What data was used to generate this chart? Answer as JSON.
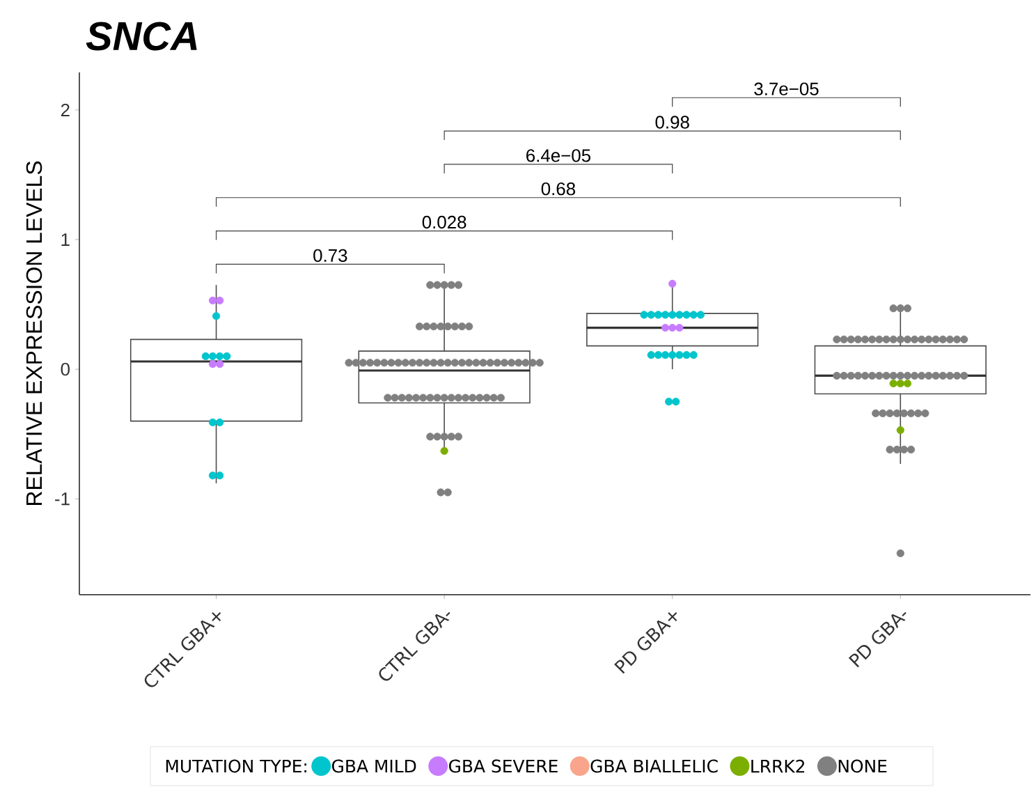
{
  "chart_data": {
    "type": "box",
    "title": "SNCA",
    "ylabel": "RELATIVE EXPRESSION LEVELS",
    "legend_title": "MUTATION TYPE:",
    "categories": [
      "CTRL GBA+",
      "CTRL GBA-",
      "PD GBA+",
      "PD GBA-"
    ],
    "ylim": [
      -1.74,
      2.29
    ],
    "yticks": [
      -1,
      0,
      1,
      2
    ],
    "grid": false,
    "legend": "bottom",
    "marker": "circle",
    "boxes": [
      {
        "low": -0.88,
        "q1": -0.4,
        "median": 0.06,
        "q3": 0.23,
        "high": 0.65
      },
      {
        "low": -0.63,
        "q1": -0.26,
        "median": -0.01,
        "q3": 0.14,
        "high": 0.65
      },
      {
        "low": 0.0,
        "q1": 0.18,
        "median": 0.32,
        "q3": 0.43,
        "high": 0.66
      },
      {
        "low": -0.73,
        "q1": -0.19,
        "median": -0.05,
        "q3": 0.18,
        "high": 0.5
      }
    ],
    "series": [
      {
        "name": "GBA MILD",
        "type": "scatter",
        "color": "#00c5cd",
        "x": [
          "CTRL GBA+",
          "CTRL GBA+",
          "CTRL GBA+",
          "CTRL GBA+",
          "CTRL GBA+",
          "CTRL GBA+",
          "CTRL GBA+",
          "CTRL GBA+",
          "CTRL GBA+",
          "PD GBA+",
          "PD GBA+",
          "PD GBA+",
          "PD GBA+",
          "PD GBA+",
          "PD GBA+",
          "PD GBA+",
          "PD GBA+",
          "PD GBA+",
          "PD GBA+",
          "PD GBA+",
          "PD GBA+",
          "PD GBA+",
          "PD GBA+",
          "PD GBA+",
          "PD GBA+",
          "PD GBA+",
          "PD GBA+"
        ],
        "values": [
          0.41,
          0.1,
          0.1,
          0.1,
          0.1,
          -0.41,
          -0.41,
          -0.82,
          -0.82,
          0.42,
          0.42,
          0.42,
          0.42,
          0.42,
          0.42,
          0.42,
          0.42,
          0.42,
          0.11,
          0.11,
          0.11,
          0.11,
          0.11,
          0.11,
          0.11,
          -0.25,
          -0.25
        ]
      },
      {
        "name": "GBA SEVERE",
        "type": "scatter",
        "color": "#c77cff",
        "x": [
          "CTRL GBA+",
          "CTRL GBA+",
          "CTRL GBA+",
          "CTRL GBA+",
          "PD GBA+",
          "PD GBA+",
          "PD GBA+",
          "PD GBA+"
        ],
        "values": [
          0.53,
          0.53,
          0.04,
          0.04,
          0.66,
          0.32,
          0.32,
          0.32
        ]
      },
      {
        "name": "GBA BIALLELIC",
        "type": "scatter",
        "color": "#f8a58b",
        "values": [
          null,
          null,
          null,
          null
        ]
      },
      {
        "name": "LRRK2",
        "type": "scatter",
        "color": "#7cae00",
        "x": [
          "CTRL GBA-",
          "PD GBA-",
          "PD GBA-",
          "PD GBA-",
          "PD GBA-"
        ],
        "values": [
          -0.63,
          -0.11,
          -0.11,
          -0.11,
          -0.47
        ]
      },
      {
        "name": "NONE",
        "type": "scatter",
        "color": "#808080",
        "x": [
          "CTRL GBA-",
          "CTRL GBA-",
          "CTRL GBA-",
          "CTRL GBA-",
          "CTRL GBA-",
          "CTRL GBA-",
          "CTRL GBA-",
          "CTRL GBA-",
          "CTRL GBA-",
          "CTRL GBA-",
          "CTRL GBA-",
          "CTRL GBA-",
          "CTRL GBA-",
          "CTRL GBA-",
          "CTRL GBA-",
          "CTRL GBA-",
          "CTRL GBA-",
          "CTRL GBA-",
          "CTRL GBA-",
          "CTRL GBA-",
          "CTRL GBA-",
          "CTRL GBA-",
          "CTRL GBA-",
          "CTRL GBA-",
          "CTRL GBA-",
          "CTRL GBA-",
          "CTRL GBA-",
          "CTRL GBA-",
          "CTRL GBA-",
          "CTRL GBA-",
          "CTRL GBA-",
          "CTRL GBA-",
          "CTRL GBA-",
          "CTRL GBA-",
          "CTRL GBA-",
          "CTRL GBA-",
          "CTRL GBA-",
          "CTRL GBA-",
          "CTRL GBA-",
          "CTRL GBA-",
          "CTRL GBA-",
          "CTRL GBA-",
          "CTRL GBA-",
          "CTRL GBA-",
          "CTRL GBA-",
          "CTRL GBA-",
          "CTRL GBA-",
          "CTRL GBA-",
          "CTRL GBA-",
          "CTRL GBA-",
          "CTRL GBA-",
          "CTRL GBA-",
          "CTRL GBA-",
          "CTRL GBA-",
          "CTRL GBA-",
          "CTRL GBA-",
          "CTRL GBA-",
          "CTRL GBA-",
          "CTRL GBA-",
          "CTRL GBA-",
          "CTRL GBA-",
          "CTRL GBA-",
          "CTRL GBA-",
          "CTRL GBA-",
          "CTRL GBA-",
          "PD GBA-",
          "PD GBA-",
          "PD GBA-",
          "PD GBA-",
          "PD GBA-",
          "PD GBA-",
          "PD GBA-",
          "PD GBA-",
          "PD GBA-",
          "PD GBA-",
          "PD GBA-",
          "PD GBA-",
          "PD GBA-",
          "PD GBA-",
          "PD GBA-",
          "PD GBA-",
          "PD GBA-",
          "PD GBA-",
          "PD GBA-",
          "PD GBA-",
          "PD GBA-",
          "PD GBA-",
          "PD GBA-",
          "PD GBA-",
          "PD GBA-",
          "PD GBA-",
          "PD GBA-",
          "PD GBA-",
          "PD GBA-",
          "PD GBA-",
          "PD GBA-",
          "PD GBA-",
          "PD GBA-",
          "PD GBA-",
          "PD GBA-",
          "PD GBA-",
          "PD GBA-",
          "PD GBA-",
          "PD GBA-",
          "PD GBA-",
          "PD GBA-",
          "PD GBA-",
          "PD GBA-",
          "PD GBA-",
          "PD GBA-",
          "PD GBA-",
          "PD GBA-",
          "PD GBA-",
          "PD GBA-",
          "PD GBA-",
          "PD GBA-",
          "PD GBA-",
          "PD GBA-",
          "PD GBA-"
        ],
        "values": [
          0.65,
          0.65,
          0.65,
          0.65,
          0.65,
          0.33,
          0.33,
          0.33,
          0.33,
          0.33,
          0.33,
          0.33,
          0.33,
          0.05,
          0.05,
          0.05,
          0.05,
          0.05,
          0.05,
          0.05,
          0.05,
          0.05,
          0.05,
          0.05,
          0.05,
          0.05,
          0.05,
          0.05,
          0.05,
          0.05,
          0.05,
          0.05,
          0.05,
          0.05,
          0.05,
          0.05,
          0.05,
          0.05,
          0.05,
          0.05,
          0.05,
          -0.22,
          -0.22,
          -0.22,
          -0.22,
          -0.22,
          -0.22,
          -0.22,
          -0.22,
          -0.22,
          -0.22,
          -0.22,
          -0.22,
          -0.22,
          -0.22,
          -0.22,
          -0.22,
          -0.22,
          -0.52,
          -0.52,
          -0.52,
          -0.52,
          -0.52,
          -0.95,
          -0.95,
          0.47,
          0.47,
          0.47,
          0.23,
          0.23,
          0.23,
          0.23,
          0.23,
          0.23,
          0.23,
          0.23,
          0.23,
          0.23,
          0.23,
          0.23,
          0.23,
          0.23,
          0.23,
          0.23,
          0.23,
          0.23,
          0.23,
          -0.05,
          -0.05,
          -0.05,
          -0.05,
          -0.05,
          -0.05,
          -0.05,
          -0.05,
          -0.05,
          -0.05,
          -0.05,
          -0.05,
          -0.05,
          -0.05,
          -0.05,
          -0.05,
          -0.05,
          -0.05,
          -0.05,
          -0.34,
          -0.34,
          -0.34,
          -0.34,
          -0.34,
          -0.34,
          -0.34,
          -0.34,
          -0.62,
          -0.62,
          -0.62,
          -0.62,
          -1.42
        ]
      }
    ],
    "annotations": [
      "0.73",
      "0.028",
      "0.68",
      "6.4e−05",
      "0.98",
      "3.7e−05"
    ]
  }
}
